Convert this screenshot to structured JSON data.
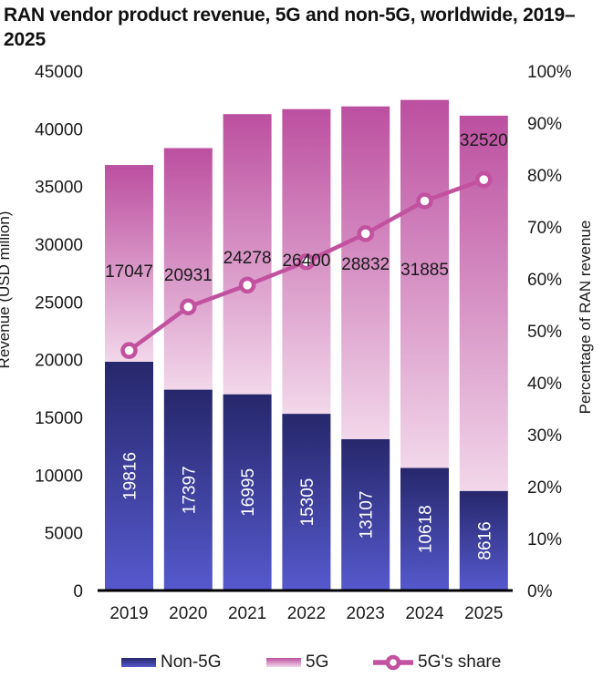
{
  "title": "RAN vendor product revenue, 5G and non-5G, worldwide, 2019–2025",
  "colors": {
    "non5g_top": "#26276b",
    "non5g_bottom": "#5659cd",
    "five_g_top": "#bc4fa0",
    "five_g_bottom": "#f2d7ea",
    "line": "#c2519f",
    "marker_fill": "#ffffff",
    "axis_line": "#000000",
    "text": "#1a1a1a"
  },
  "chart_data": {
    "type": "bar",
    "subtype": "stacked_bar_with_percentage_line",
    "grid": false,
    "legend_position": "bottom",
    "categories": [
      "2019",
      "2020",
      "2021",
      "2022",
      "2023",
      "2024",
      "2025"
    ],
    "series": [
      {
        "name": "Non-5G",
        "values": [
          19816,
          17397,
          16995,
          15305,
          13107,
          10618,
          8616
        ],
        "gradient": [
          "#26276b",
          "#5659cd"
        ],
        "value_label_color": "#ffffff",
        "value_label_rotation": -90
      },
      {
        "name": "5G",
        "values": [
          17047,
          20931,
          24278,
          26400,
          28832,
          31885,
          32520
        ],
        "gradient": [
          "#bc4fa0",
          "#f2d7ea"
        ],
        "value_label_color": "#1a1a1a",
        "value_label_rotation": 0
      }
    ],
    "line": {
      "name": "5G's share",
      "unit": "%",
      "values": [
        46.2,
        54.6,
        58.8,
        63.3,
        68.7,
        75.0,
        79.1
      ],
      "color": "#c2519f",
      "marker": {
        "fill": "#ffffff",
        "stroke": "#c2519f"
      }
    },
    "axes": {
      "left": {
        "label": "Revenue (USD million)",
        "min": 0,
        "max": 45000,
        "step": 5000,
        "tick_labels": [
          "0",
          "5000",
          "10000",
          "15000",
          "20000",
          "25000",
          "30000",
          "35000",
          "40000",
          "45000"
        ]
      },
      "right": {
        "label": "Percentage of RAN revenue",
        "min": 0,
        "max": 100,
        "step": 10,
        "tick_labels": [
          "0%",
          "10%",
          "20%",
          "30%",
          "40%",
          "50%",
          "60%",
          "70%",
          "80%",
          "90%",
          "100%"
        ]
      },
      "bottom": {
        "tick_labels": [
          "2019",
          "2020",
          "2021",
          "2022",
          "2023",
          "2024",
          "2025"
        ]
      }
    },
    "layout_hints": {
      "five_g_label_y": [
        297,
        301,
        282,
        285,
        289,
        295,
        153
      ]
    }
  }
}
